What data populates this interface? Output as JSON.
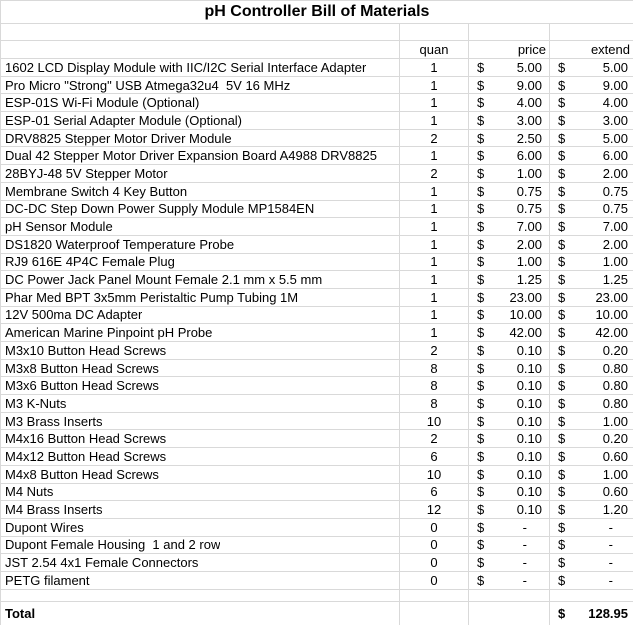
{
  "title": "pH Controller Bill of Materials",
  "currency": "$",
  "columns": {
    "quan": "quan",
    "price": "price",
    "extend": "extend"
  },
  "rows": [
    {
      "item": "1602 LCD Display Module with IIC/I2C Serial Interface Adapter",
      "quan": "1",
      "price": "5.00",
      "extend": "5.00"
    },
    {
      "item": "Pro Micro \"Strong\" USB Atmega32u4  5V 16 MHz",
      "quan": "1",
      "price": "9.00",
      "extend": "9.00"
    },
    {
      "item": "ESP-01S Wi-Fi Module (Optional)",
      "quan": "1",
      "price": "4.00",
      "extend": "4.00"
    },
    {
      "item": "ESP-01 Serial Adapter Module (Optional)",
      "quan": "1",
      "price": "3.00",
      "extend": "3.00"
    },
    {
      "item": "DRV8825 Stepper Motor Driver Module",
      "quan": "2",
      "price": "2.50",
      "extend": "5.00"
    },
    {
      "item": "Dual 42 Stepper Motor Driver Expansion Board A4988 DRV8825",
      "quan": "1",
      "price": "6.00",
      "extend": "6.00"
    },
    {
      "item": "28BYJ-48 5V Stepper Motor",
      "quan": "2",
      "price": "1.00",
      "extend": "2.00"
    },
    {
      "item": "Membrane Switch 4 Key Button",
      "quan": "1",
      "price": "0.75",
      "extend": "0.75"
    },
    {
      "item": "DC-DC Step Down Power Supply Module MP1584EN",
      "quan": "1",
      "price": "0.75",
      "extend": "0.75"
    },
    {
      "item": "pH Sensor Module",
      "quan": "1",
      "price": "7.00",
      "extend": "7.00"
    },
    {
      "item": "DS1820 Waterproof Temperature Probe",
      "quan": "1",
      "price": "2.00",
      "extend": "2.00"
    },
    {
      "item": "RJ9 616E 4P4C Female Plug",
      "quan": "1",
      "price": "1.00",
      "extend": "1.00"
    },
    {
      "item": "DC Power Jack Panel Mount Female 2.1 mm x 5.5 mm",
      "quan": "1",
      "price": "1.25",
      "extend": "1.25"
    },
    {
      "item": "Phar Med BPT 3x5mm Peristaltic Pump Tubing 1M",
      "quan": "1",
      "price": "23.00",
      "extend": "23.00"
    },
    {
      "item": "12V 500ma DC Adapter",
      "quan": "1",
      "price": "10.00",
      "extend": "10.00"
    },
    {
      "item": "American Marine Pinpoint pH Probe",
      "quan": "1",
      "price": "42.00",
      "extend": "42.00"
    },
    {
      "item": "M3x10 Button Head Screws",
      "quan": "2",
      "price": "0.10",
      "extend": "0.20"
    },
    {
      "item": "M3x8 Button Head Screws",
      "quan": "8",
      "price": "0.10",
      "extend": "0.80"
    },
    {
      "item": "M3x6 Button Head Screws",
      "quan": "8",
      "price": "0.10",
      "extend": "0.80"
    },
    {
      "item": "M3 K-Nuts",
      "quan": "8",
      "price": "0.10",
      "extend": "0.80"
    },
    {
      "item": "M3 Brass Inserts",
      "quan": "10",
      "price": "0.10",
      "extend": "1.00"
    },
    {
      "item": "M4x16 Button Head Screws",
      "quan": "2",
      "price": "0.10",
      "extend": "0.20"
    },
    {
      "item": "M4x12 Button Head Screws",
      "quan": "6",
      "price": "0.10",
      "extend": "0.60"
    },
    {
      "item": "M4x8 Button Head Screws",
      "quan": "10",
      "price": "0.10",
      "extend": "1.00"
    },
    {
      "item": "M4 Nuts",
      "quan": "6",
      "price": "0.10",
      "extend": "0.60"
    },
    {
      "item": "M4 Brass Inserts",
      "quan": "12",
      "price": "0.10",
      "extend": "1.20"
    },
    {
      "item": "Dupont Wires",
      "quan": "0",
      "price": "-",
      "extend": "-"
    },
    {
      "item": "Dupont Female Housing  1 and 2 row",
      "quan": "0",
      "price": "-",
      "extend": "-"
    },
    {
      "item": "JST 2.54 4x1 Female Connectors",
      "quan": "0",
      "price": "-",
      "extend": "-"
    },
    {
      "item": "PETG filament",
      "quan": "0",
      "price": "-",
      "extend": "-"
    }
  ],
  "total": {
    "label": "Total",
    "extend": "128.95"
  },
  "colors": {
    "gridline": "#d9d9d9",
    "text": "#000000",
    "background": "#ffffff"
  }
}
